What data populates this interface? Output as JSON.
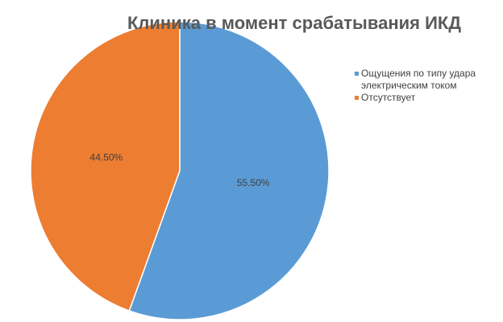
{
  "chart_data": {
    "type": "pie",
    "title": "Клиника в момент срабатывания ИКД",
    "categories": [
      "Ощущения по типу удара электрическим током",
      "Отсутствует"
    ],
    "values": [
      55.5,
      44.5
    ],
    "value_labels": [
      "55.50%",
      "44.50%"
    ],
    "colors": [
      "#5b9bd5",
      "#ed7d31"
    ],
    "legend": "right"
  }
}
